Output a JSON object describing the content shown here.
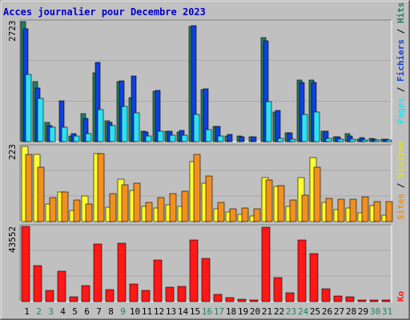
{
  "title": "Acces journalier pour Decembre 2023",
  "colors": {
    "title": "#0000cc",
    "frame_bg": "#c0c0c0",
    "hits": "#208060",
    "files": "#1040e0",
    "pages": "#30e0f0",
    "visits": "#ffff30",
    "sites": "#f09020",
    "kbytes": "#ff1818",
    "day_normal": "#000000",
    "day_weekend": "#208060"
  },
  "labels": {
    "top_max": "2723",
    "mid_max": "223",
    "bottom_max": "43552",
    "right_top": {
      "pages": "Pages",
      "sep1": " / ",
      "files": "Fichiers",
      "sep2": " / ",
      "hits": "Hits"
    },
    "right_mid": {
      "sites": "Sites",
      "sep": " / ",
      "visits": "Visites"
    },
    "right_bottom": {
      "kbytes": "Ko"
    }
  },
  "chart_data": [
    {
      "type": "bar",
      "title": "Acces journalier pour Decembre 2023",
      "categories": [
        "1",
        "2",
        "3",
        "4",
        "5",
        "6",
        "7",
        "8",
        "9",
        "10",
        "11",
        "12",
        "13",
        "14",
        "15",
        "16",
        "17",
        "18",
        "19",
        "20",
        "21",
        "22",
        "23",
        "24",
        "25",
        "26",
        "27",
        "28",
        "29",
        "30",
        "31"
      ],
      "weekend_days": [
        "2",
        "3",
        "9",
        "16",
        "17",
        "23",
        "24",
        "30",
        "31"
      ],
      "ylim": [
        0,
        2723
      ],
      "y_tick_label": "2723",
      "series": [
        {
          "name": "Hits",
          "values": [
            2723,
            1360,
            440,
            0,
            120,
            630,
            1570,
            470,
            1360,
            990,
            230,
            1150,
            240,
            210,
            2610,
            1180,
            340,
            120,
            120,
            110,
            2360,
            680,
            200,
            1390,
            1400,
            240,
            100,
            180,
            60,
            80,
            60
          ]
        },
        {
          "name": "Fichiers",
          "values": [
            2560,
            1220,
            360,
            920,
            180,
            530,
            1790,
            440,
            1380,
            1490,
            220,
            1160,
            240,
            260,
            2630,
            1190,
            350,
            160,
            110,
            100,
            2280,
            700,
            200,
            1340,
            1350,
            230,
            110,
            130,
            90,
            60,
            60
          ]
        },
        {
          "name": "Pages",
          "values": [
            1520,
            980,
            330,
            320,
            130,
            190,
            720,
            370,
            790,
            660,
            120,
            240,
            140,
            140,
            610,
            280,
            120,
            0,
            0,
            0,
            900,
            80,
            50,
            610,
            670,
            70,
            50,
            50,
            30,
            30,
            20
          ]
        }
      ]
    },
    {
      "type": "bar",
      "categories": [
        "1",
        "2",
        "3",
        "4",
        "5",
        "6",
        "7",
        "8",
        "9",
        "10",
        "11",
        "12",
        "13",
        "14",
        "15",
        "16",
        "17",
        "18",
        "19",
        "20",
        "21",
        "22",
        "23",
        "24",
        "25",
        "26",
        "27",
        "28",
        "29",
        "30",
        "31"
      ],
      "ylim": [
        0,
        223
      ],
      "y_tick_label": "223",
      "series": [
        {
          "name": "Visites",
          "values": [
            223,
            200,
            52,
            87,
            34,
            77,
            201,
            43,
            126,
            92,
            46,
            40,
            50,
            45,
            177,
            113,
            38,
            28,
            22,
            16,
            130,
            104,
            46,
            130,
            189,
            57,
            35,
            40,
            25,
            48,
            18
          ]
        },
        {
          "name": "Sites",
          "values": [
            200,
            162,
            70,
            87,
            64,
            53,
            202,
            83,
            108,
            113,
            57,
            72,
            82,
            91,
            200,
            136,
            57,
            39,
            40,
            37,
            124,
            106,
            64,
            78,
            162,
            68,
            67,
            67,
            73,
            59,
            60
          ]
        }
      ]
    },
    {
      "type": "bar",
      "categories": [
        "1",
        "2",
        "3",
        "4",
        "5",
        "6",
        "7",
        "8",
        "9",
        "10",
        "11",
        "12",
        "13",
        "14",
        "15",
        "16",
        "17",
        "18",
        "19",
        "20",
        "21",
        "22",
        "23",
        "24",
        "25",
        "26",
        "27",
        "28",
        "29",
        "30",
        "31"
      ],
      "ylim": [
        0,
        43552
      ],
      "y_tick_label": "43552",
      "series": [
        {
          "name": "Ko",
          "values": [
            43552,
            20800,
            6500,
            17600,
            2800,
            9400,
            33400,
            7100,
            33900,
            10200,
            6300,
            23900,
            8400,
            8600,
            35600,
            25000,
            4300,
            2500,
            1600,
            600,
            43000,
            13900,
            5100,
            35700,
            27800,
            7300,
            3200,
            2900,
            500,
            300,
            400
          ]
        }
      ]
    }
  ]
}
